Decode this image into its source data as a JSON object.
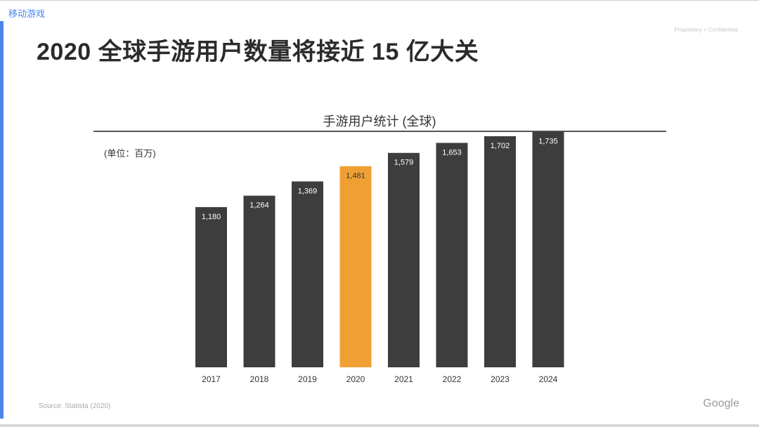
{
  "header": {
    "section_label": "移动游戏",
    "proprietary": "Proprietary + Confidential",
    "title": "2020 全球手游用户数量将接近 15 亿大关"
  },
  "footer": {
    "source": "Source: Statista (2020)",
    "logo": "Google"
  },
  "chart_data": {
    "type": "bar",
    "title": "手游用户统计 (全球)",
    "unit_label": "(单位：百万)",
    "categories": [
      "2017",
      "2018",
      "2019",
      "2020",
      "2021",
      "2022",
      "2023",
      "2024"
    ],
    "values": [
      1180,
      1264,
      1369,
      1481,
      1579,
      1653,
      1702,
      1735
    ],
    "value_labels": [
      "1,180",
      "1,264",
      "1,369",
      "1,481",
      "1,579",
      "1,653",
      "1,702",
      "1,735"
    ],
    "highlight_index": 3,
    "ylim": [
      0,
      1800
    ],
    "grid": false,
    "colors": {
      "bar": "#3d3d3d",
      "highlight": "#f0a033",
      "label_on_bar": "#ffffff",
      "label_on_highlight": "#333333"
    }
  }
}
